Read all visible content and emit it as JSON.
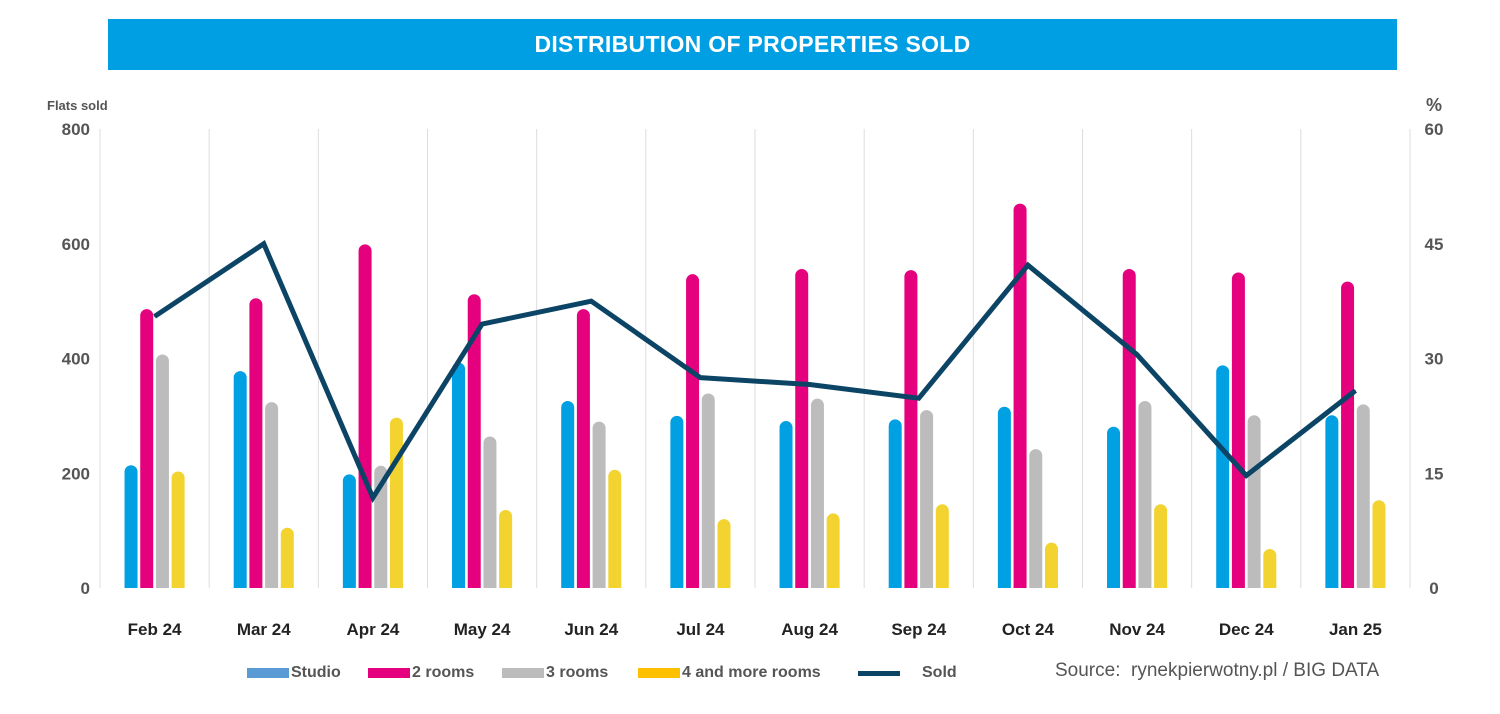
{
  "header": {
    "title": "DISTRIBUTION OF PROPERTIES SOLD"
  },
  "source": "Source:  rynekpierwotny.pl / BIG DATA",
  "legend": {
    "studio": "Studio",
    "rooms2": "2 rooms",
    "rooms3": "3 rooms",
    "rooms4": "4 and more rooms",
    "sold": "Sold"
  },
  "colors": {
    "studio": "#00a0e3",
    "rooms2": "#e5007e",
    "rooms3": "#bcbcbc",
    "rooms4": "#f3d330",
    "sold": "#0c4466",
    "studio_legend": "#5b9bd5",
    "rooms4_legend": "#ffc000",
    "grid": "#dddddd"
  },
  "chart_data": {
    "type": "bar",
    "title": "DISTRIBUTION OF PROPERTIES SOLD",
    "ylabel": "Flats sold",
    "y2label": "%",
    "ylim": [
      0,
      800
    ],
    "y2lim": [
      0,
      60
    ],
    "yticks": [
      0,
      200,
      400,
      600,
      800
    ],
    "y2ticks": [
      0,
      15,
      30,
      45,
      60
    ],
    "grid": "vertical",
    "legend_placement": "bottom",
    "categories": [
      "Feb 24",
      "Mar 24",
      "Apr 24",
      "May 24",
      "Jun 24",
      "Jul 24",
      "Aug 24",
      "Sep 24",
      "Oct 24",
      "Nov 24",
      "Dec 24",
      "Jan 25"
    ],
    "series": [
      {
        "name": "Studio",
        "axis": "left",
        "values": [
          214,
          378,
          198,
          393,
          326,
          300,
          291,
          294,
          316,
          281,
          388,
          301
        ]
      },
      {
        "name": "2 rooms",
        "axis": "left",
        "values": [
          486,
          505,
          599,
          512,
          486,
          547,
          556,
          554,
          670,
          556,
          550,
          534
        ]
      },
      {
        "name": "3 rooms",
        "axis": "left",
        "values": [
          407,
          324,
          213,
          264,
          290,
          339,
          330,
          310,
          242,
          326,
          301,
          320
        ]
      },
      {
        "name": "4 and more rooms",
        "axis": "left",
        "values": [
          203,
          105,
          297,
          136,
          206,
          120,
          130,
          146,
          79,
          146,
          68,
          153
        ]
      },
      {
        "name": "Sold",
        "type": "line",
        "axis": "right",
        "values": [
          35.5,
          45.0,
          11.8,
          34.5,
          37.5,
          27.5,
          26.6,
          24.8,
          42.2,
          30.5,
          14.7,
          25.8
        ]
      }
    ]
  }
}
